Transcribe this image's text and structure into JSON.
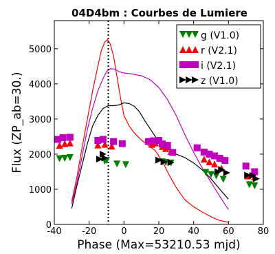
{
  "chart_data": {
    "type": "scatter",
    "title": "04D4bm : Courbes de Lumiere",
    "xlabel": "Phase (Max=53210.53 mjd)",
    "ylabel": "Flux (ZP_ab=30.)",
    "xlim": [
      -40,
      80
    ],
    "ylim": [
      0,
      5800
    ],
    "xticks": [
      -40,
      -20,
      0,
      20,
      40,
      60,
      80
    ],
    "yticks": [
      0,
      1000,
      2000,
      3000,
      4000,
      5000
    ],
    "xtick_labels": [
      "-40",
      "-20",
      "0",
      "20",
      "40",
      "60",
      "80"
    ],
    "ytick_labels": [
      "0",
      "1000",
      "2000",
      "3000",
      "4000",
      "5000"
    ],
    "grid": false,
    "legend_position": "top-right",
    "max_marker": {
      "x": -9,
      "style": "dotted vertical line"
    },
    "series": [
      {
        "name": "g (V1.0)",
        "marker": "triangle-down",
        "color": "#008000",
        "points": [
          [
            -37,
            1870
          ],
          [
            -34,
            1880
          ],
          [
            -31,
            1900
          ],
          [
            -11,
            1800
          ],
          [
            -10,
            1820
          ],
          [
            -4,
            1720
          ],
          [
            1,
            1700
          ],
          [
            22,
            1780
          ],
          [
            24,
            1760
          ],
          [
            27,
            1750
          ],
          [
            47,
            1480
          ],
          [
            50,
            1420
          ],
          [
            53,
            1380
          ],
          [
            57,
            1280
          ],
          [
            72,
            1130
          ],
          [
            75,
            1100
          ]
        ]
      },
      {
        "name": "r (V2.1)",
        "marker": "triangle-up",
        "color": "#ff0000",
        "points": [
          [
            -37,
            2250
          ],
          [
            -34,
            2300
          ],
          [
            -31,
            2320
          ],
          [
            -15,
            2260
          ],
          [
            -11,
            2280
          ],
          [
            -7,
            2230
          ],
          [
            16,
            2280
          ],
          [
            18,
            2320
          ],
          [
            22,
            2220
          ],
          [
            24,
            2160
          ],
          [
            27,
            2080
          ],
          [
            46,
            1860
          ],
          [
            49,
            1780
          ],
          [
            52,
            1720
          ],
          [
            56,
            1600
          ],
          [
            71,
            1380
          ],
          [
            75,
            1350
          ]
        ]
      },
      {
        "name": "i (V2.1)",
        "marker": "square",
        "color": "#bf00bf",
        "points": [
          [
            -38,
            2420
          ],
          [
            -35,
            2470
          ],
          [
            -31,
            2480
          ],
          [
            -15,
            2390
          ],
          [
            -12,
            2420
          ],
          [
            -6,
            2360
          ],
          [
            -1,
            2300
          ],
          [
            14,
            2360
          ],
          [
            17,
            2380
          ],
          [
            20,
            2390
          ],
          [
            22,
            2290
          ],
          [
            25,
            2250
          ],
          [
            28,
            2050
          ],
          [
            42,
            2180
          ],
          [
            46,
            2060
          ],
          [
            49,
            2000
          ],
          [
            52,
            1950
          ],
          [
            55,
            1880
          ],
          [
            58,
            1820
          ],
          [
            70,
            1660
          ],
          [
            75,
            1500
          ]
        ]
      },
      {
        "name": "z (V1.0)",
        "marker": "triangle-right",
        "color": "#000000",
        "points": [
          [
            -14,
            1860
          ],
          [
            -12,
            2000
          ],
          [
            -11,
            1890
          ],
          [
            20,
            1830
          ],
          [
            23,
            1780
          ],
          [
            27,
            1760
          ],
          [
            54,
            1500
          ],
          [
            56,
            1560
          ],
          [
            59,
            1470
          ],
          [
            71,
            1400
          ],
          [
            74,
            1390
          ],
          [
            76,
            1300
          ]
        ]
      }
    ],
    "curves": [
      {
        "color": "#ff0000",
        "points": [
          [
            -30,
            650
          ],
          [
            -27,
            1350
          ],
          [
            -24,
            2200
          ],
          [
            -21,
            3000
          ],
          [
            -18,
            3800
          ],
          [
            -15,
            4500
          ],
          [
            -13,
            4950
          ],
          [
            -11,
            5200
          ],
          [
            -9.5,
            5260
          ],
          [
            -8,
            5150
          ],
          [
            -6,
            4800
          ],
          [
            -4,
            4200
          ],
          [
            -2,
            3600
          ],
          [
            0,
            3100
          ],
          [
            3,
            2800
          ],
          [
            6,
            2600
          ],
          [
            10,
            2400
          ],
          [
            14,
            2250
          ],
          [
            18,
            2100
          ],
          [
            20,
            1950
          ],
          [
            23,
            1700
          ],
          [
            26,
            1400
          ],
          [
            30,
            1050
          ],
          [
            35,
            700
          ],
          [
            40,
            500
          ],
          [
            45,
            350
          ],
          [
            50,
            220
          ],
          [
            55,
            110
          ],
          [
            60,
            60
          ]
        ]
      },
      {
        "color": "#bf00bf",
        "points": [
          [
            -30,
            580
          ],
          [
            -27,
            1200
          ],
          [
            -24,
            1950
          ],
          [
            -21,
            2700
          ],
          [
            -18,
            3300
          ],
          [
            -15,
            3800
          ],
          [
            -12,
            4150
          ],
          [
            -10,
            4350
          ],
          [
            -8,
            4430
          ],
          [
            -5,
            4420
          ],
          [
            -3,
            4350
          ],
          [
            0,
            4310
          ],
          [
            5,
            4280
          ],
          [
            10,
            4230
          ],
          [
            15,
            4120
          ],
          [
            20,
            3900
          ],
          [
            25,
            3550
          ],
          [
            30,
            3100
          ],
          [
            35,
            2550
          ],
          [
            40,
            2050
          ],
          [
            45,
            1600
          ],
          [
            50,
            1200
          ],
          [
            55,
            800
          ],
          [
            60,
            420
          ]
        ]
      },
      {
        "color": "#000000",
        "points": [
          [
            -30,
            450
          ],
          [
            -27,
            1100
          ],
          [
            -24,
            1700
          ],
          [
            -21,
            2300
          ],
          [
            -18,
            2800
          ],
          [
            -15,
            3100
          ],
          [
            -12,
            3300
          ],
          [
            -9,
            3380
          ],
          [
            -6,
            3380
          ],
          [
            -3,
            3400
          ],
          [
            0,
            3460
          ],
          [
            3,
            3440
          ],
          [
            6,
            3360
          ],
          [
            9,
            3200
          ],
          [
            12,
            2950
          ],
          [
            16,
            2650
          ],
          [
            20,
            2350
          ],
          [
            25,
            2150
          ],
          [
            30,
            2000
          ],
          [
            35,
            1900
          ],
          [
            40,
            1750
          ],
          [
            45,
            1550
          ],
          [
            50,
            1300
          ],
          [
            55,
            1000
          ],
          [
            60,
            720
          ]
        ]
      }
    ]
  }
}
